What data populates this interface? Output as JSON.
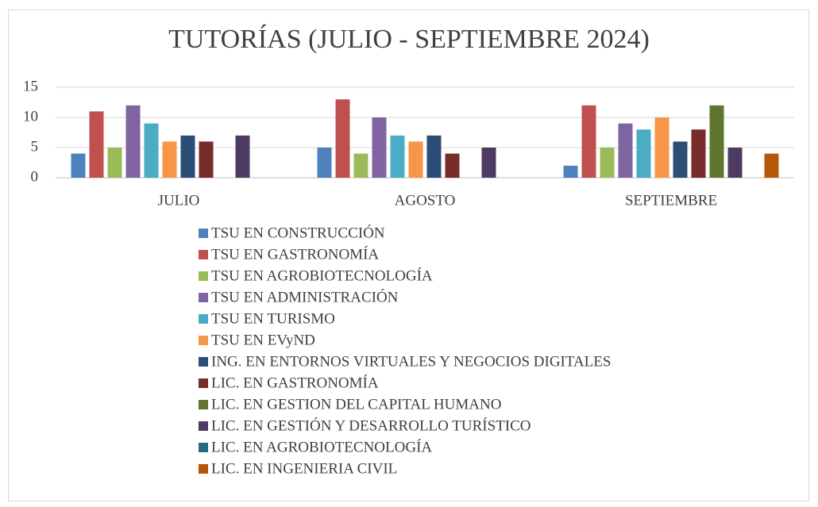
{
  "chart_data": {
    "type": "bar",
    "title": "TUTORÍAS (JULIO - SEPTIEMBRE 2024)",
    "categories": [
      "JULIO",
      "AGOSTO",
      "SEPTIEMBRE"
    ],
    "ylim": [
      0,
      15
    ],
    "yticks": [
      0,
      5,
      10,
      15
    ],
    "grid": true,
    "legend": "bottom",
    "series": [
      {
        "name": "TSU EN CONSTRUCCIÓN",
        "color": "#4f81bd",
        "values": [
          4,
          5,
          2
        ]
      },
      {
        "name": "TSU EN GASTRONOMÍA",
        "color": "#c0504d",
        "values": [
          11,
          13,
          12
        ]
      },
      {
        "name": "TSU EN AGROBIOTECNOLOGÍA",
        "color": "#9bbb59",
        "values": [
          5,
          4,
          5
        ]
      },
      {
        "name": "TSU EN ADMINISTRACIÓN",
        "color": "#8064a2",
        "values": [
          12,
          10,
          9
        ]
      },
      {
        "name": "TSU EN TURISMO",
        "color": "#4bacc6",
        "values": [
          9,
          7,
          8
        ]
      },
      {
        "name": "TSU EN EVyND",
        "color": "#f79646",
        "values": [
          6,
          6,
          10
        ]
      },
      {
        "name": "ING. EN ENTORNOS VIRTUALES Y NEGOCIOS DIGITALES",
        "color": "#2c4d75",
        "values": [
          7,
          7,
          6
        ]
      },
      {
        "name": "LIC. EN GASTRONOMÍA",
        "color": "#772c2a",
        "values": [
          6,
          4,
          8
        ]
      },
      {
        "name": "LIC. EN GESTION DEL CAPITAL HUMANO",
        "color": "#5f7530",
        "values": [
          null,
          null,
          12
        ]
      },
      {
        "name": "LIC. EN GESTIÓN Y DESARROLLO TURÍSTICO",
        "color": "#4d3b62",
        "values": [
          7,
          5,
          5
        ]
      },
      {
        "name": "LIC. EN AGROBIOTECNOLOGÍA",
        "color": "#276a7c",
        "values": [
          null,
          null,
          null
        ]
      },
      {
        "name": "LIC. EN INGENIERIA CIVIL",
        "color": "#b65708",
        "values": [
          null,
          null,
          4
        ]
      }
    ]
  }
}
